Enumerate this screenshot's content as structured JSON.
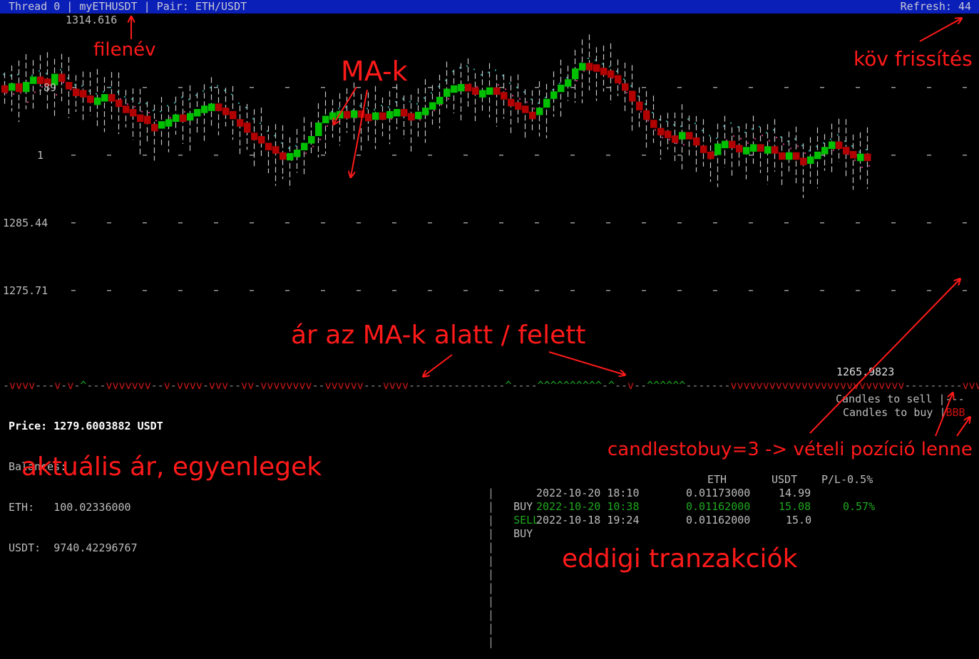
{
  "title_bar": {
    "left_text": "Thread 0 | myETHUSDT | Pair: ETH/USDT",
    "refresh_label": "Refresh:",
    "refresh_value": "44"
  },
  "chart": {
    "price_labels": [
      "1314.616",
      ".89",
      "1",
      "1285.44",
      "1275.71",
      "1265.9823"
    ],
    "indicator_line": "-vvvv---v-v-^---vvvvvvv--v-vvvv-vvv--vv-vvvvvvvv--vvvvvv---vvvv---------------^----^^^^^^^^^^-^--v--^^^^^^-------vvvvvvvvvvvvvvvvvvvvvvvvvvv---------vvvv",
    "colors": {
      "up": "#00c000",
      "down": "#b30000",
      "wick": "#c8c8c8",
      "ma": "#2aa198",
      "ma2": "#d33682"
    }
  },
  "info": {
    "price_label": "Price:",
    "price_value": "1279.6003882 USDT",
    "balances_label": "Balances:",
    "eth_label": "ETH:",
    "eth_value": "100.02336000",
    "usdt_label": "USDT:",
    "usdt_value": "9740.42296767"
  },
  "candles_panel": {
    "sell_label": "Candles to sell",
    "sell_value": "---",
    "buy_label": "Candles to buy",
    "buy_value": "BBB"
  },
  "transactions": {
    "headers": {
      "eth": "ETH",
      "usdt": "USDT",
      "pl": "P/L-0.5%"
    },
    "rows": [
      {
        "type": "BUY",
        "date": "2022-10-20 18:10",
        "eth": "0.01173000",
        "usdt": "14.99",
        "pl": ""
      },
      {
        "type": "SELL",
        "date": "2022-10-20 10:38",
        "eth": "0.01162000",
        "usdt": "15.08",
        "pl": "0.57%"
      },
      {
        "type": "BUY",
        "date": "2022-10-18 19:24",
        "eth": "0.01162000",
        "usdt": "15.0",
        "pl": ""
      }
    ]
  },
  "annotations": {
    "filename": "filenév",
    "ma": "MA-k",
    "refresh": "köv frissítés",
    "price_vs_ma": "ár az MA-k alatt / felett",
    "current_price": "aktuális ár, egyenlegek",
    "candlestobuy": "candlestobuy=3 -> vételi pozíció lenne",
    "transactions": "eddigi tranzakciók"
  }
}
